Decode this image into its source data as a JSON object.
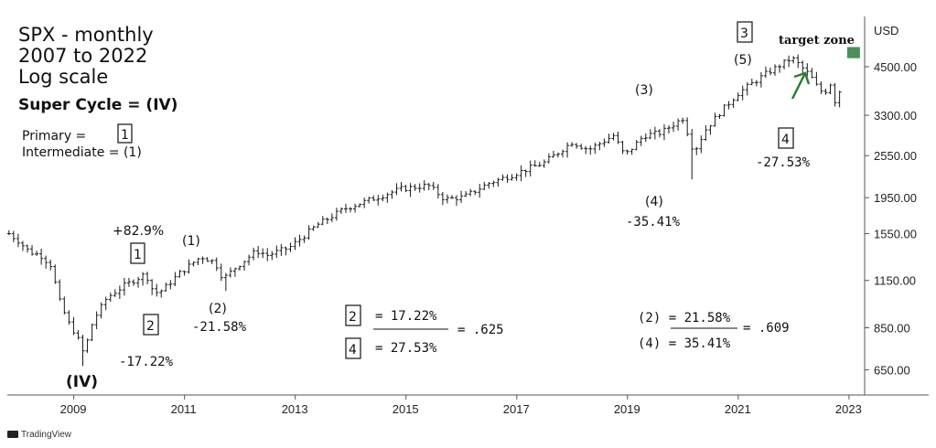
{
  "title_lines": [
    "SPX - monthly",
    "2007 to 2022",
    "Log scale"
  ],
  "super_cycle": "Super Cycle = (IV)",
  "legend": {
    "primary_label": "Primary =",
    "primary_box": "1",
    "intermediate_label": "Intermediate = (1)"
  },
  "currency": "USD",
  "brand": "TradingView",
  "colors": {
    "bar": "#1a1a1a",
    "target": "#4a8f57",
    "arrow": "#2e7d32",
    "axis": "#444444"
  },
  "chart_data": {
    "type": "ohlc",
    "y_scale": "log",
    "ylim": [
      560,
      6200
    ],
    "xlim": [
      2007.8,
      2023.2
    ],
    "y_ticks": [
      {
        "value": 650,
        "label": "650.00"
      },
      {
        "value": 850,
        "label": "850.00"
      },
      {
        "value": 1150,
        "label": "1150.00"
      },
      {
        "value": 1550,
        "label": "1550.00"
      },
      {
        "value": 1950,
        "label": "1950.00"
      },
      {
        "value": 2550,
        "label": "2550.00"
      },
      {
        "value": 3300,
        "label": "3300.00"
      },
      {
        "value": 4500,
        "label": "4500.00"
      }
    ],
    "x_ticks": [
      {
        "value": 2009,
        "label": "2009"
      },
      {
        "value": 2011,
        "label": "2011"
      },
      {
        "value": 2013,
        "label": "2013"
      },
      {
        "value": 2015,
        "label": "2015"
      },
      {
        "value": 2017,
        "label": "2017"
      },
      {
        "value": 2019,
        "label": "2019"
      },
      {
        "value": 2021,
        "label": "2021"
      },
      {
        "value": 2023,
        "label": "2023"
      }
    ],
    "anchors": [
      [
        2007.83,
        1550
      ],
      [
        2008.0,
        1480
      ],
      [
        2008.2,
        1380
      ],
      [
        2008.4,
        1350
      ],
      [
        2008.58,
        1270
      ],
      [
        2008.75,
        1000
      ],
      [
        2008.9,
        880
      ],
      [
        2009.05,
        810
      ],
      [
        2009.18,
        720
      ],
      [
        2009.35,
        890
      ],
      [
        2009.6,
        1030
      ],
      [
        2009.9,
        1110
      ],
      [
        2010.3,
        1200
      ],
      [
        2010.45,
        1060
      ],
      [
        2010.6,
        1080
      ],
      [
        2010.9,
        1200
      ],
      [
        2011.3,
        1340
      ],
      [
        2011.55,
        1290
      ],
      [
        2011.7,
        1160
      ],
      [
        2011.9,
        1240
      ],
      [
        2012.3,
        1390
      ],
      [
        2012.5,
        1350
      ],
      [
        2012.9,
        1420
      ],
      [
        2013.4,
        1640
      ],
      [
        2013.9,
        1820
      ],
      [
        2014.5,
        1960
      ],
      [
        2014.9,
        2060
      ],
      [
        2015.4,
        2110
      ],
      [
        2015.7,
        1930
      ],
      [
        2016.05,
        1960
      ],
      [
        2016.5,
        2140
      ],
      [
        2016.9,
        2250
      ],
      [
        2017.5,
        2440
      ],
      [
        2018.0,
        2780
      ],
      [
        2018.3,
        2650
      ],
      [
        2018.75,
        2900
      ],
      [
        2018.95,
        2550
      ],
      [
        2019.3,
        2900
      ],
      [
        2019.6,
        2950
      ],
      [
        2020.0,
        3240
      ],
      [
        2020.2,
        2600
      ],
      [
        2020.4,
        3000
      ],
      [
        2020.7,
        3400
      ],
      [
        2021.0,
        3800
      ],
      [
        2021.5,
        4300
      ],
      [
        2021.97,
        4760
      ],
      [
        2022.3,
        4250
      ],
      [
        2022.45,
        3900
      ],
      [
        2022.55,
        3800
      ],
      [
        2022.67,
        4050
      ],
      [
        2022.75,
        3600
      ],
      [
        2022.83,
        3850
      ]
    ],
    "lows": [
      {
        "t": 2009.18,
        "low": 666
      },
      {
        "t": 2011.72,
        "low": 1075
      },
      {
        "t": 2020.2,
        "low": 2192
      },
      {
        "t": 2022.75,
        "low": 3490
      }
    ],
    "highs": [
      {
        "t": 2021.97,
        "high": 4818
      }
    ],
    "target_zone": {
      "from": 2023.0,
      "to": 2023.2,
      "low": 4750,
      "high": 5100,
      "label": "target zone"
    }
  },
  "annotations": {
    "pct_829": "+82.9%",
    "box1": "1",
    "box2": "2",
    "pct_1722": "-17.22%",
    "w1_label": "(1)",
    "w2_label": "(2)",
    "pct_2158": "-21.58%",
    "iv_label": "(IV)",
    "w3_label": "(3)",
    "w4_label": "(4)",
    "pct_3541": "-35.41%",
    "box3": "3",
    "w5_label": "(5)",
    "box4": "4",
    "pct_2753": "-27.53%",
    "ratio1": {
      "box_a": "2",
      "eq_a": "= 17.22%",
      "result": "= .625",
      "box_b": "4",
      "eq_b": "= 27.53%"
    },
    "ratio2": {
      "top": "(2)  = 21.58%",
      "result": "= .609",
      "bottom": "(4)  = 35.41%"
    }
  }
}
